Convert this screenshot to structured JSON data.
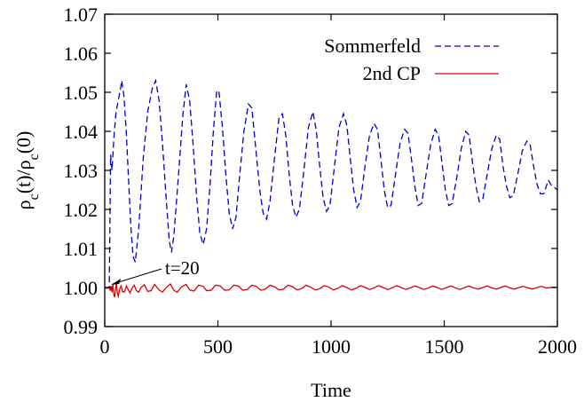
{
  "chart_data": {
    "type": "line",
    "xlabel": "Time",
    "ylabel": "ρc(t)/ρc(0)",
    "xlim": [
      0,
      2000
    ],
    "ylim": [
      0.99,
      1.07
    ],
    "xticks": [
      "0",
      "500",
      "1000",
      "1500",
      "2000"
    ],
    "yticks": [
      "0.99",
      "1.00",
      "1.01",
      "1.02",
      "1.03",
      "1.04",
      "1.05",
      "1.06",
      "1.07"
    ],
    "legend": {
      "placement": "top-right"
    },
    "annotation": {
      "text": "t=20",
      "x": 20,
      "y": 1.0
    },
    "series": [
      {
        "name": "Sommerfeld",
        "color": "#0000cc",
        "dash": "dashed",
        "points": [
          [
            0,
            1.0
          ],
          [
            20,
            1.0
          ],
          [
            26,
            1.034
          ],
          [
            32,
            1.03
          ],
          [
            40,
            1.038
          ],
          [
            50,
            1.045
          ],
          [
            60,
            1.048
          ],
          [
            70,
            1.051
          ],
          [
            75,
            1.053
          ],
          [
            85,
            1.049
          ],
          [
            95,
            1.04
          ],
          [
            105,
            1.028
          ],
          [
            115,
            1.016
          ],
          [
            125,
            1.008
          ],
          [
            135,
            1.0065
          ],
          [
            150,
            1.015
          ],
          [
            170,
            1.033
          ],
          [
            190,
            1.045
          ],
          [
            210,
            1.051
          ],
          [
            225,
            1.053
          ],
          [
            240,
            1.048
          ],
          [
            255,
            1.037
          ],
          [
            270,
            1.024
          ],
          [
            285,
            1.012
          ],
          [
            295,
            1.009
          ],
          [
            305,
            1.013
          ],
          [
            325,
            1.028
          ],
          [
            345,
            1.044
          ],
          [
            360,
            1.052
          ],
          [
            375,
            1.048
          ],
          [
            390,
            1.037
          ],
          [
            405,
            1.024
          ],
          [
            420,
            1.014
          ],
          [
            435,
            1.011
          ],
          [
            450,
            1.015
          ],
          [
            465,
            1.026
          ],
          [
            480,
            1.04
          ],
          [
            495,
            1.0505
          ],
          [
            505,
            1.05
          ],
          [
            520,
            1.041
          ],
          [
            535,
            1.029
          ],
          [
            550,
            1.019
          ],
          [
            565,
            1.015
          ],
          [
            580,
            1.018
          ],
          [
            595,
            1.028
          ],
          [
            615,
            1.04
          ],
          [
            635,
            1.047
          ],
          [
            650,
            1.046
          ],
          [
            665,
            1.037
          ],
          [
            685,
            1.025
          ],
          [
            700,
            1.019
          ],
          [
            715,
            1.0175
          ],
          [
            730,
            1.022
          ],
          [
            750,
            1.033
          ],
          [
            770,
            1.0435
          ],
          [
            785,
            1.0445
          ],
          [
            800,
            1.039
          ],
          [
            815,
            1.029
          ],
          [
            830,
            1.021
          ],
          [
            845,
            1.018
          ],
          [
            860,
            1.02
          ],
          [
            880,
            1.03
          ],
          [
            900,
            1.041
          ],
          [
            920,
            1.045
          ],
          [
            935,
            1.04
          ],
          [
            950,
            1.031
          ],
          [
            965,
            1.023
          ],
          [
            980,
            1.0195
          ],
          [
            995,
            1.021
          ],
          [
            1015,
            1.031
          ],
          [
            1035,
            1.041
          ],
          [
            1055,
            1.0445
          ],
          [
            1070,
            1.0415
          ],
          [
            1085,
            1.033
          ],
          [
            1100,
            1.025
          ],
          [
            1115,
            1.0205
          ],
          [
            1130,
            1.022
          ],
          [
            1150,
            1.031
          ],
          [
            1170,
            1.039
          ],
          [
            1190,
            1.042
          ],
          [
            1205,
            1.0405
          ],
          [
            1220,
            1.033
          ],
          [
            1235,
            1.025
          ],
          [
            1250,
            1.0205
          ],
          [
            1265,
            1.021
          ],
          [
            1285,
            1.029
          ],
          [
            1305,
            1.037
          ],
          [
            1325,
            1.0405
          ],
          [
            1340,
            1.0395
          ],
          [
            1355,
            1.033
          ],
          [
            1370,
            1.026
          ],
          [
            1385,
            1.021
          ],
          [
            1400,
            1.0215
          ],
          [
            1420,
            1.029
          ],
          [
            1440,
            1.0365
          ],
          [
            1460,
            1.0405
          ],
          [
            1475,
            1.039
          ],
          [
            1490,
            1.032
          ],
          [
            1505,
            1.025
          ],
          [
            1520,
            1.021
          ],
          [
            1535,
            1.0215
          ],
          [
            1555,
            1.028
          ],
          [
            1575,
            1.0355
          ],
          [
            1595,
            1.04
          ],
          [
            1610,
            1.039
          ],
          [
            1625,
            1.032
          ],
          [
            1640,
            1.026
          ],
          [
            1655,
            1.022
          ],
          [
            1670,
            1.0225
          ],
          [
            1690,
            1.029
          ],
          [
            1710,
            1.0355
          ],
          [
            1730,
            1.039
          ],
          [
            1745,
            1.038
          ],
          [
            1760,
            1.031
          ],
          [
            1775,
            1.026
          ],
          [
            1790,
            1.023
          ],
          [
            1805,
            1.0235
          ],
          [
            1825,
            1.029
          ],
          [
            1845,
            1.035
          ],
          [
            1865,
            1.0375
          ],
          [
            1880,
            1.0365
          ],
          [
            1895,
            1.031
          ],
          [
            1910,
            1.0265
          ],
          [
            1925,
            1.024
          ],
          [
            1940,
            1.024
          ],
          [
            1960,
            1.0275
          ],
          [
            1975,
            1.026
          ],
          [
            1990,
            1.0255
          ],
          [
            2000,
            1.025
          ]
        ]
      },
      {
        "name": "2nd CP",
        "color": "#dd0000",
        "dash": "solid",
        "points": [
          [
            0,
            1.0
          ],
          [
            10,
            0.9998
          ],
          [
            20,
            1.0
          ],
          [
            24,
            0.9992
          ],
          [
            28,
            1.0004
          ],
          [
            32,
            0.9988
          ],
          [
            36,
            1.0008
          ],
          [
            40,
            0.9982
          ],
          [
            44,
            0.9975
          ],
          [
            48,
            0.9998
          ],
          [
            52,
            1.001
          ],
          [
            56,
            0.9985
          ],
          [
            60,
            0.9978
          ],
          [
            66,
            0.9996
          ],
          [
            72,
            1.0004
          ],
          [
            80,
            0.9988
          ],
          [
            88,
            0.999
          ],
          [
            96,
            1.0004
          ],
          [
            104,
            0.9994
          ],
          [
            112,
            0.9986
          ],
          [
            120,
            0.9998
          ],
          [
            130,
            1.0006
          ],
          [
            140,
            0.9992
          ],
          [
            150,
            0.9988
          ],
          [
            160,
            1.0
          ],
          [
            175,
            1.0007
          ],
          [
            190,
            0.999
          ],
          [
            205,
            0.9992
          ],
          [
            220,
            1.0008
          ],
          [
            240,
            0.9994
          ],
          [
            255,
            0.9988
          ],
          [
            270,
            0.9999
          ],
          [
            290,
            1.0009
          ],
          [
            305,
            0.9993
          ],
          [
            320,
            0.9988
          ],
          [
            340,
            1.0002
          ],
          [
            360,
            1.0008
          ],
          [
            375,
            0.9994
          ],
          [
            395,
            0.9991
          ],
          [
            415,
            1.0006
          ],
          [
            435,
            1.0003
          ],
          [
            450,
            0.9992
          ],
          [
            470,
            0.9993
          ],
          [
            490,
            1.0006
          ],
          [
            510,
            1.0004
          ],
          [
            530,
            0.9993
          ],
          [
            550,
            0.9994
          ],
          [
            570,
            1.0006
          ],
          [
            590,
            1.0004
          ],
          [
            610,
            0.9993
          ],
          [
            630,
            0.9995
          ],
          [
            650,
            1.0006
          ],
          [
            670,
            1.0003
          ],
          [
            690,
            0.9993
          ],
          [
            710,
            0.9996
          ],
          [
            730,
            1.0006
          ],
          [
            750,
            1.0002
          ],
          [
            770,
            0.9994
          ],
          [
            790,
            0.9996
          ],
          [
            810,
            1.0006
          ],
          [
            830,
            1.0002
          ],
          [
            850,
            0.9994
          ],
          [
            870,
            0.9997
          ],
          [
            890,
            1.0006
          ],
          [
            910,
            1.0001
          ],
          [
            930,
            0.9994
          ],
          [
            950,
            0.9997
          ],
          [
            970,
            1.0005
          ],
          [
            990,
            1.0001
          ],
          [
            1010,
            0.9994
          ],
          [
            1030,
            0.9998
          ],
          [
            1050,
            1.0005
          ],
          [
            1070,
            1.0
          ],
          [
            1090,
            0.9994
          ],
          [
            1110,
            0.9998
          ],
          [
            1130,
            1.0005
          ],
          [
            1150,
            1.0
          ],
          [
            1170,
            0.9995
          ],
          [
            1190,
            0.9999
          ],
          [
            1210,
            1.0005
          ],
          [
            1230,
            1.0
          ],
          [
            1250,
            0.9995
          ],
          [
            1270,
            0.9999
          ],
          [
            1290,
            1.0005
          ],
          [
            1310,
            1.0
          ],
          [
            1330,
            0.9995
          ],
          [
            1350,
            0.9999
          ],
          [
            1370,
            1.0004
          ],
          [
            1390,
            1.0
          ],
          [
            1410,
            0.9995
          ],
          [
            1430,
            0.9999
          ],
          [
            1450,
            1.0004
          ],
          [
            1470,
            1.0
          ],
          [
            1490,
            0.9995
          ],
          [
            1510,
            1.0
          ],
          [
            1530,
            1.0004
          ],
          [
            1550,
            0.9999
          ],
          [
            1570,
            0.9995
          ],
          [
            1590,
            1.0
          ],
          [
            1610,
            1.0004
          ],
          [
            1630,
            0.9999
          ],
          [
            1650,
            0.9996
          ],
          [
            1670,
            1.0
          ],
          [
            1690,
            1.0004
          ],
          [
            1710,
            0.9999
          ],
          [
            1730,
            0.9996
          ],
          [
            1750,
            1.0
          ],
          [
            1770,
            1.0004
          ],
          [
            1790,
            0.9999
          ],
          [
            1810,
            0.9996
          ],
          [
            1830,
            1.0
          ],
          [
            1850,
            1.0003
          ],
          [
            1870,
            0.9999
          ],
          [
            1890,
            0.9996
          ],
          [
            1910,
            1.0
          ],
          [
            1930,
            1.0003
          ],
          [
            1950,
            0.9999
          ],
          [
            1970,
            1.0
          ],
          [
            1985,
            1.0001
          ],
          [
            2000,
            1.0
          ]
        ]
      }
    ]
  }
}
